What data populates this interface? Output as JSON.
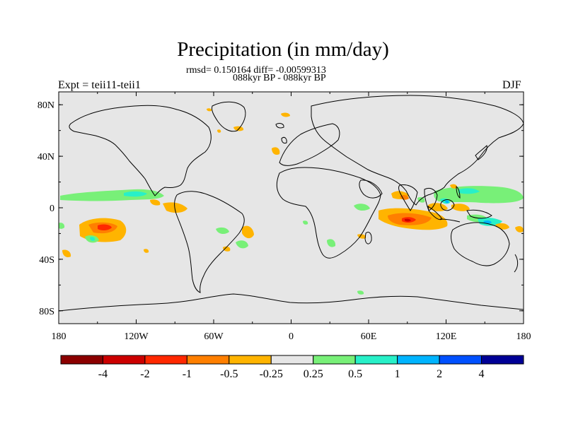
{
  "title": "Precipitation (in mm/day)",
  "stats_line": "rmsd= 0.150164 diff= -0.00599313",
  "period_line": "088kyr BP - 088kyr BP",
  "expt_label": "Expt = teii11-teii1",
  "season_label": "DJF",
  "map": {
    "projection": "cylindrical-equidistant",
    "lon_range": [
      -180,
      180
    ],
    "lat_range": [
      -90,
      90
    ],
    "background_color": "#e6e6e6",
    "x_ticks": [
      "180",
      "120W",
      "60W",
      "0",
      "60E",
      "120E",
      "180"
    ],
    "y_ticks": [
      "80N",
      "40N",
      "0",
      "40S",
      "80S"
    ]
  },
  "colorbar": {
    "labels": [
      "-4",
      "-2",
      "-1",
      "-0.5",
      "-0.25",
      "0.25",
      "0.5",
      "1",
      "2",
      "4"
    ],
    "colors": [
      "#8b0000",
      "#cc0000",
      "#ff2800",
      "#ff7f00",
      "#ffb400",
      "#e6e6e6",
      "#78f078",
      "#28f0c8",
      "#00b4ff",
      "#0050ff",
      "#000096"
    ]
  },
  "anomalies": [
    {
      "region": "central-pacific-itcz",
      "sign": "positive",
      "level": 0.5
    },
    {
      "region": "southeast-pacific",
      "sign": "negative",
      "level": -2
    },
    {
      "region": "indian-ocean-south",
      "sign": "negative",
      "level": -2
    },
    {
      "region": "maritime-continent",
      "sign": "positive",
      "level": 1
    },
    {
      "region": "south-atlantic-brazil",
      "sign": "negative",
      "level": -0.5
    }
  ]
}
